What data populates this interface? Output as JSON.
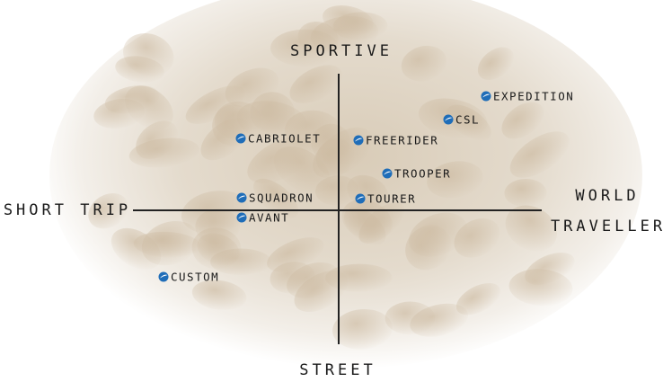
{
  "axes": {
    "top": "SPORTIVE",
    "bottom": "STREET",
    "left": "SHORT TRIP",
    "right": [
      "WORLD",
      "TRAVELLER"
    ]
  },
  "nodes": [
    {
      "label": "EXPEDITION"
    },
    {
      "label": "CSL"
    },
    {
      "label": "CABRIOLET"
    },
    {
      "label": "FREERIDER"
    },
    {
      "label": "TROOPER"
    },
    {
      "label": "SQUADRON"
    },
    {
      "label": "TOURER"
    },
    {
      "label": "AVANT"
    },
    {
      "label": "CUSTOM"
    }
  ]
}
